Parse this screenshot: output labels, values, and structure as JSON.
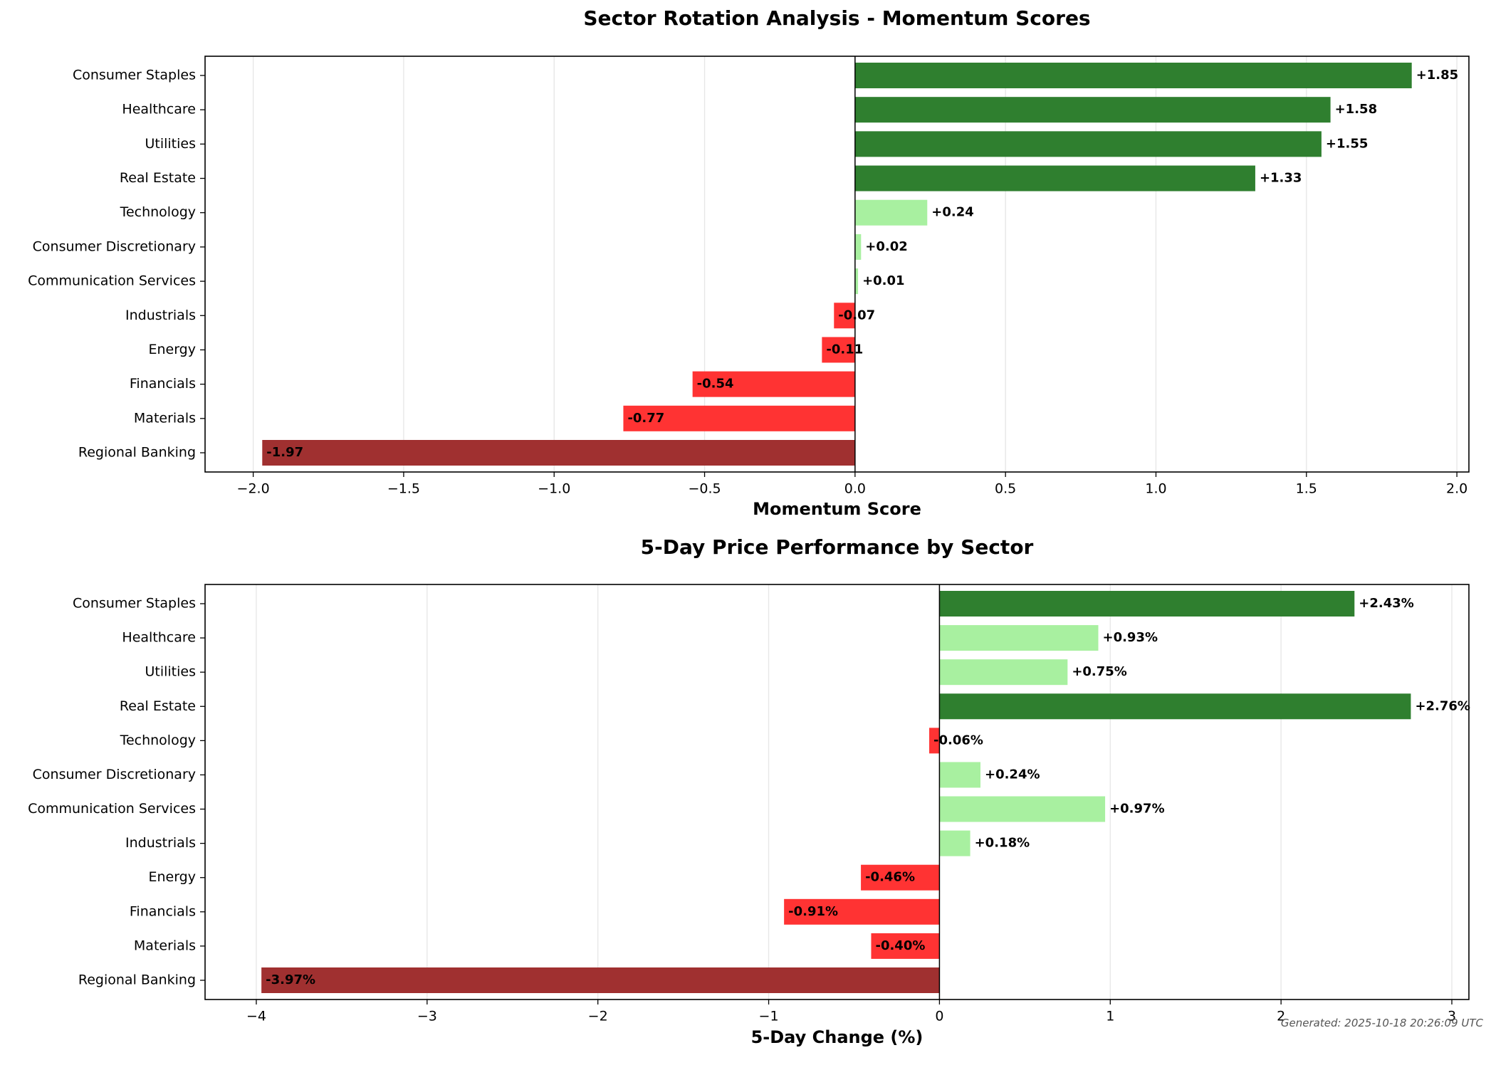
{
  "footer": "Generated: 2025-10-18 20:26:09 UTC",
  "colors": {
    "strong_positive": "#2f7f2f",
    "mild_positive": "#a8f0a0",
    "negative": "#ff3333",
    "strong_negative": "#a03030",
    "grid": "#e6e6e6",
    "axis": "#000000"
  },
  "chart_data": [
    {
      "type": "bar",
      "orientation": "horizontal",
      "title": "Sector Rotation Analysis - Momentum Scores",
      "xlabel": "Momentum Score",
      "ylabel": "",
      "categories": [
        "Consumer Staples",
        "Healthcare",
        "Utilities",
        "Real Estate",
        "Technology",
        "Consumer Discretionary",
        "Communication Services",
        "Industrials",
        "Energy",
        "Financials",
        "Materials",
        "Regional Banking"
      ],
      "values": [
        1.85,
        1.58,
        1.55,
        1.33,
        0.24,
        0.02,
        0.01,
        -0.07,
        -0.11,
        -0.54,
        -0.77,
        -1.97
      ],
      "labels": [
        "+1.85",
        "+1.58",
        "+1.55",
        "+1.33",
        "+0.24",
        "+0.02",
        "+0.01",
        "-0.07",
        "-0.11",
        "-0.54",
        "-0.77",
        "-1.97"
      ],
      "bar_colors": [
        "strong_positive",
        "strong_positive",
        "strong_positive",
        "strong_positive",
        "mild_positive",
        "mild_positive",
        "mild_positive",
        "negative",
        "negative",
        "negative",
        "negative",
        "strong_negative"
      ],
      "xlim": [
        -2.16,
        2.04
      ],
      "xticks": [
        -2.0,
        -1.5,
        -1.0,
        -0.5,
        0.0,
        0.5,
        1.0,
        1.5,
        2.0
      ],
      "xtick_labels": [
        "−2.0",
        "−1.5",
        "−1.0",
        "−0.5",
        "0.0",
        "0.5",
        "1.0",
        "1.5",
        "2.0"
      ],
      "grid": "vertical"
    },
    {
      "type": "bar",
      "orientation": "horizontal",
      "title": "5-Day Price Performance by Sector",
      "xlabel": "5-Day Change (%)",
      "ylabel": "",
      "categories": [
        "Consumer Staples",
        "Healthcare",
        "Utilities",
        "Real Estate",
        "Technology",
        "Consumer Discretionary",
        "Communication Services",
        "Industrials",
        "Energy",
        "Financials",
        "Materials",
        "Regional Banking"
      ],
      "values": [
        2.43,
        0.93,
        0.75,
        2.76,
        -0.06,
        0.24,
        0.97,
        0.18,
        -0.46,
        -0.91,
        -0.4,
        -3.97
      ],
      "labels": [
        "+2.43%",
        "+0.93%",
        "+0.75%",
        "+2.76%",
        "-0.06%",
        "+0.24%",
        "+0.97%",
        "+0.18%",
        "-0.46%",
        "-0.91%",
        "-0.40%",
        "-3.97%"
      ],
      "bar_colors": [
        "strong_positive",
        "mild_positive",
        "mild_positive",
        "strong_positive",
        "negative",
        "mild_positive",
        "mild_positive",
        "mild_positive",
        "negative",
        "negative",
        "negative",
        "strong_negative"
      ],
      "xlim": [
        -4.3,
        3.1
      ],
      "xticks": [
        -4,
        -3,
        -2,
        -1,
        0,
        1,
        2,
        3
      ],
      "xtick_labels": [
        "−4",
        "−3",
        "−2",
        "−1",
        "0",
        "1",
        "2",
        "3"
      ],
      "grid": "vertical"
    }
  ]
}
